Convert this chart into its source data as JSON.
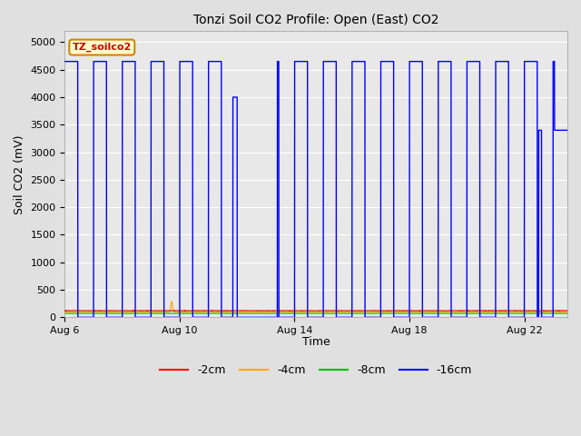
{
  "title": "Tonzi Soil CO2 Profile: Open (East) CO2",
  "ylabel": "Soil CO2 (mV)",
  "xlabel": "Time",
  "ylim": [
    0,
    5200
  ],
  "yticks": [
    0,
    500,
    1000,
    1500,
    2000,
    2500,
    3000,
    3500,
    4000,
    4500,
    5000
  ],
  "fig_bg_color": "#e0e0e0",
  "plot_bg_color": "#e8e8e8",
  "legend_labels": [
    "-2cm",
    "-4cm",
    "-8cm",
    "-16cm"
  ],
  "legend_colors": [
    "#ff0000",
    "#ffa500",
    "#00bb00",
    "#0000ff"
  ],
  "watermark_text": "TZ_soilco2",
  "watermark_bg": "#ffffcc",
  "watermark_border": "#cc8800",
  "watermark_text_color": "#cc0000",
  "xstart_day": 6,
  "xend_day": 23.5,
  "xtick_days": [
    6,
    10,
    14,
    18,
    22
  ],
  "xtick_labels": [
    "Aug 6",
    "Aug 10",
    "Aug 14",
    "Aug 18",
    "Aug 22"
  ],
  "high_val": 4650,
  "low_val": 0,
  "grid_color": "#ffffff",
  "line_color_2cm": "#ff0000",
  "line_color_4cm": "#ffa500",
  "line_color_8cm": "#00bb00",
  "line_color_16cm": "#0000ff",
  "figsize": [
    6.4,
    4.8
  ],
  "dpi": 100
}
